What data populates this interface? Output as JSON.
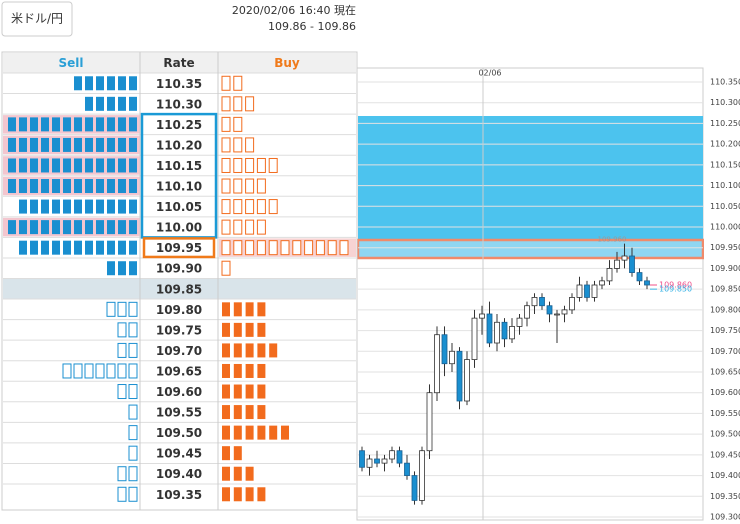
{
  "header": {
    "pair_button": "米ドル/円",
    "timestamp": "2020/02/06 16:40 現在",
    "range": "109.86 - 109.86"
  },
  "order_book": {
    "headers": {
      "sell": "Sell",
      "rate": "Rate",
      "buy": "Buy"
    },
    "rows": [
      {
        "rate": "110.35",
        "sell": 6,
        "buy": 2
      },
      {
        "rate": "110.30",
        "sell": 5,
        "buy": 3
      },
      {
        "rate": "110.25",
        "sell": 12,
        "buy": 2
      },
      {
        "rate": "110.20",
        "sell": 12,
        "buy": 3
      },
      {
        "rate": "110.15",
        "sell": 12,
        "buy": 5
      },
      {
        "rate": "110.10",
        "sell": 12,
        "buy": 4
      },
      {
        "rate": "110.05",
        "sell": 11,
        "buy": 5
      },
      {
        "rate": "110.00",
        "sell": 12,
        "buy": 4
      },
      {
        "rate": "109.95",
        "sell": 11,
        "buy": 11
      },
      {
        "rate": "109.90",
        "sell": 3,
        "buy": 1
      },
      {
        "rate": "109.85",
        "sell": null,
        "buy": null
      },
      {
        "rate": "109.80",
        "sell": 3,
        "buy": 4
      },
      {
        "rate": "109.75",
        "sell": 2,
        "buy": 4
      },
      {
        "rate": "109.70",
        "sell": 2,
        "buy": 5
      },
      {
        "rate": "109.65",
        "sell": 7,
        "buy": 4
      },
      {
        "rate": "109.60",
        "sell": 2,
        "buy": 4
      },
      {
        "rate": "109.55",
        "sell": 1,
        "buy": 4
      },
      {
        "rate": "109.50",
        "sell": 1,
        "buy": 6
      },
      {
        "rate": "109.45",
        "sell": 1,
        "buy": 2
      },
      {
        "rate": "109.40",
        "sell": 2,
        "buy": 3
      },
      {
        "rate": "109.35",
        "sell": 2,
        "buy": 4
      }
    ]
  },
  "chart_data": {
    "type": "candlestick",
    "date_label": "02/06",
    "up_color": "#ffffff",
    "down_color": "#1a8fd0",
    "open": [
      109.46,
      109.42,
      109.44,
      109.43,
      109.44,
      109.46,
      109.43,
      109.4,
      109.34,
      109.46,
      109.6,
      109.74,
      109.67,
      109.7,
      109.58,
      109.68,
      109.78,
      109.79,
      109.72,
      109.77,
      109.73,
      109.76,
      109.78,
      109.81,
      109.83,
      109.81,
      109.79,
      109.79,
      109.8,
      109.83,
      109.86,
      109.83,
      109.86,
      109.87,
      109.9,
      109.92,
      109.93,
      109.89,
      109.87
    ],
    "high": [
      109.47,
      109.45,
      109.46,
      109.45,
      109.47,
      109.47,
      109.45,
      109.41,
      109.47,
      109.62,
      109.76,
      109.76,
      109.72,
      109.71,
      109.7,
      109.8,
      109.81,
      109.82,
      109.79,
      109.78,
      109.78,
      109.79,
      109.82,
      109.84,
      109.84,
      109.82,
      109.8,
      109.81,
      109.84,
      109.88,
      109.87,
      109.87,
      109.88,
      109.92,
      109.94,
      109.96,
      109.95,
      109.9,
      109.88
    ],
    "low": [
      109.41,
      109.4,
      109.42,
      109.41,
      109.43,
      109.42,
      109.39,
      109.33,
      109.33,
      109.44,
      109.58,
      109.64,
      109.65,
      109.56,
      109.57,
      109.66,
      109.74,
      109.71,
      109.7,
      109.71,
      109.72,
      109.74,
      109.76,
      109.79,
      109.8,
      109.77,
      109.72,
      109.77,
      109.79,
      109.82,
      109.82,
      109.82,
      109.85,
      109.86,
      109.89,
      109.9,
      109.88,
      109.86,
      109.85
    ],
    "close": [
      109.42,
      109.44,
      109.43,
      109.44,
      109.46,
      109.43,
      109.4,
      109.34,
      109.46,
      109.6,
      109.74,
      109.67,
      109.7,
      109.58,
      109.68,
      109.78,
      109.79,
      109.72,
      109.77,
      109.73,
      109.76,
      109.78,
      109.81,
      109.83,
      109.81,
      109.79,
      109.79,
      109.8,
      109.83,
      109.86,
      109.83,
      109.86,
      109.87,
      109.9,
      109.92,
      109.93,
      109.89,
      109.87,
      109.86
    ],
    "ylim": [
      109.3,
      110.35
    ],
    "yticks": [
      {
        "value": 110.35,
        "label": "110.350"
      },
      {
        "value": 110.3,
        "label": "110.300"
      },
      {
        "value": 110.25,
        "label": "110.250"
      },
      {
        "value": 110.2,
        "label": "110.200"
      },
      {
        "value": 110.15,
        "label": "110.150"
      },
      {
        "value": 110.1,
        "label": "110.100"
      },
      {
        "value": 110.05,
        "label": "110.050"
      },
      {
        "value": 110,
        "label": "110.000"
      },
      {
        "value": 109.95,
        "label": "109.950"
      },
      {
        "value": 109.9,
        "label": "109.900"
      },
      {
        "value": 109.85,
        "label": "109.850"
      },
      {
        "value": 109.8,
        "label": "109.800"
      },
      {
        "value": 109.75,
        "label": "109.750"
      },
      {
        "value": 109.7,
        "label": "109.700"
      },
      {
        "value": 109.65,
        "label": "109.650"
      },
      {
        "value": 109.6,
        "label": "109.600"
      },
      {
        "value": 109.55,
        "label": "109.550"
      },
      {
        "value": 109.5,
        "label": "109.500"
      },
      {
        "value": 109.45,
        "label": "109.450"
      },
      {
        "value": 109.4,
        "label": "109.400"
      },
      {
        "value": 109.35,
        "label": "109.350"
      },
      {
        "value": 109.3,
        "label": "109.300"
      }
    ],
    "grid": true,
    "annotations": [
      {
        "label": "109.960",
        "value": 109.96,
        "color": "#999999"
      },
      {
        "label": "109.860",
        "value": 109.86,
        "color": "#f0508a"
      },
      {
        "label": "109.850",
        "value": 109.85,
        "color": "#3db4e6"
      }
    ]
  }
}
